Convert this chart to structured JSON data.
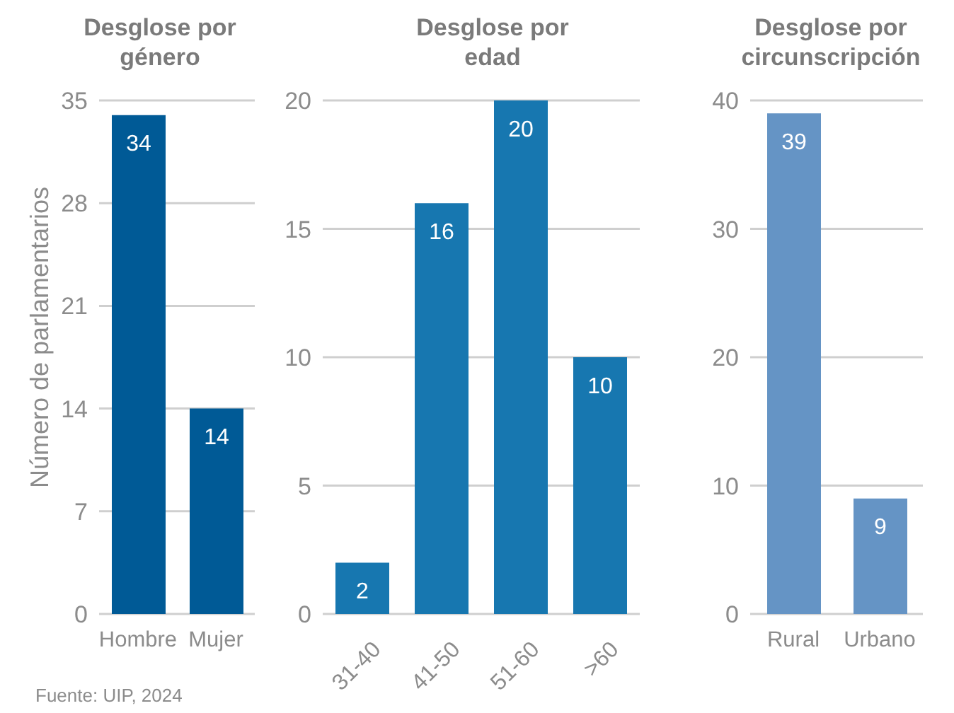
{
  "chart_data": [
    {
      "type": "bar",
      "title": "Desglose por género",
      "ylabel": "Número de parlamentarios",
      "categories": [
        "Hombre",
        "Mujer"
      ],
      "values": [
        34,
        14
      ],
      "color": "#005a96",
      "ylim": [
        0,
        35
      ],
      "yticks": [
        0,
        7,
        14,
        21,
        28,
        35
      ],
      "grid": "y",
      "data_labels": true,
      "annotations": [
        "Fuente: UIP, 2024"
      ]
    },
    {
      "type": "bar",
      "title": "Desglose por edad",
      "categories": [
        "31-40",
        "41-50",
        "51-60",
        ">60"
      ],
      "values": [
        2,
        16,
        20,
        10
      ],
      "color": "#1777b0",
      "ylim": [
        0,
        20
      ],
      "yticks": [
        0,
        5,
        10,
        15,
        20
      ],
      "grid": "y",
      "data_labels": true
    },
    {
      "type": "bar",
      "title": "Desglose por circunscripción",
      "categories": [
        "Rural",
        "Urbano"
      ],
      "values": [
        39,
        9
      ],
      "color": "#6594c5",
      "ylim": [
        0,
        40
      ],
      "yticks": [
        0,
        10,
        20,
        30,
        40
      ],
      "grid": "y",
      "data_labels": true
    }
  ]
}
